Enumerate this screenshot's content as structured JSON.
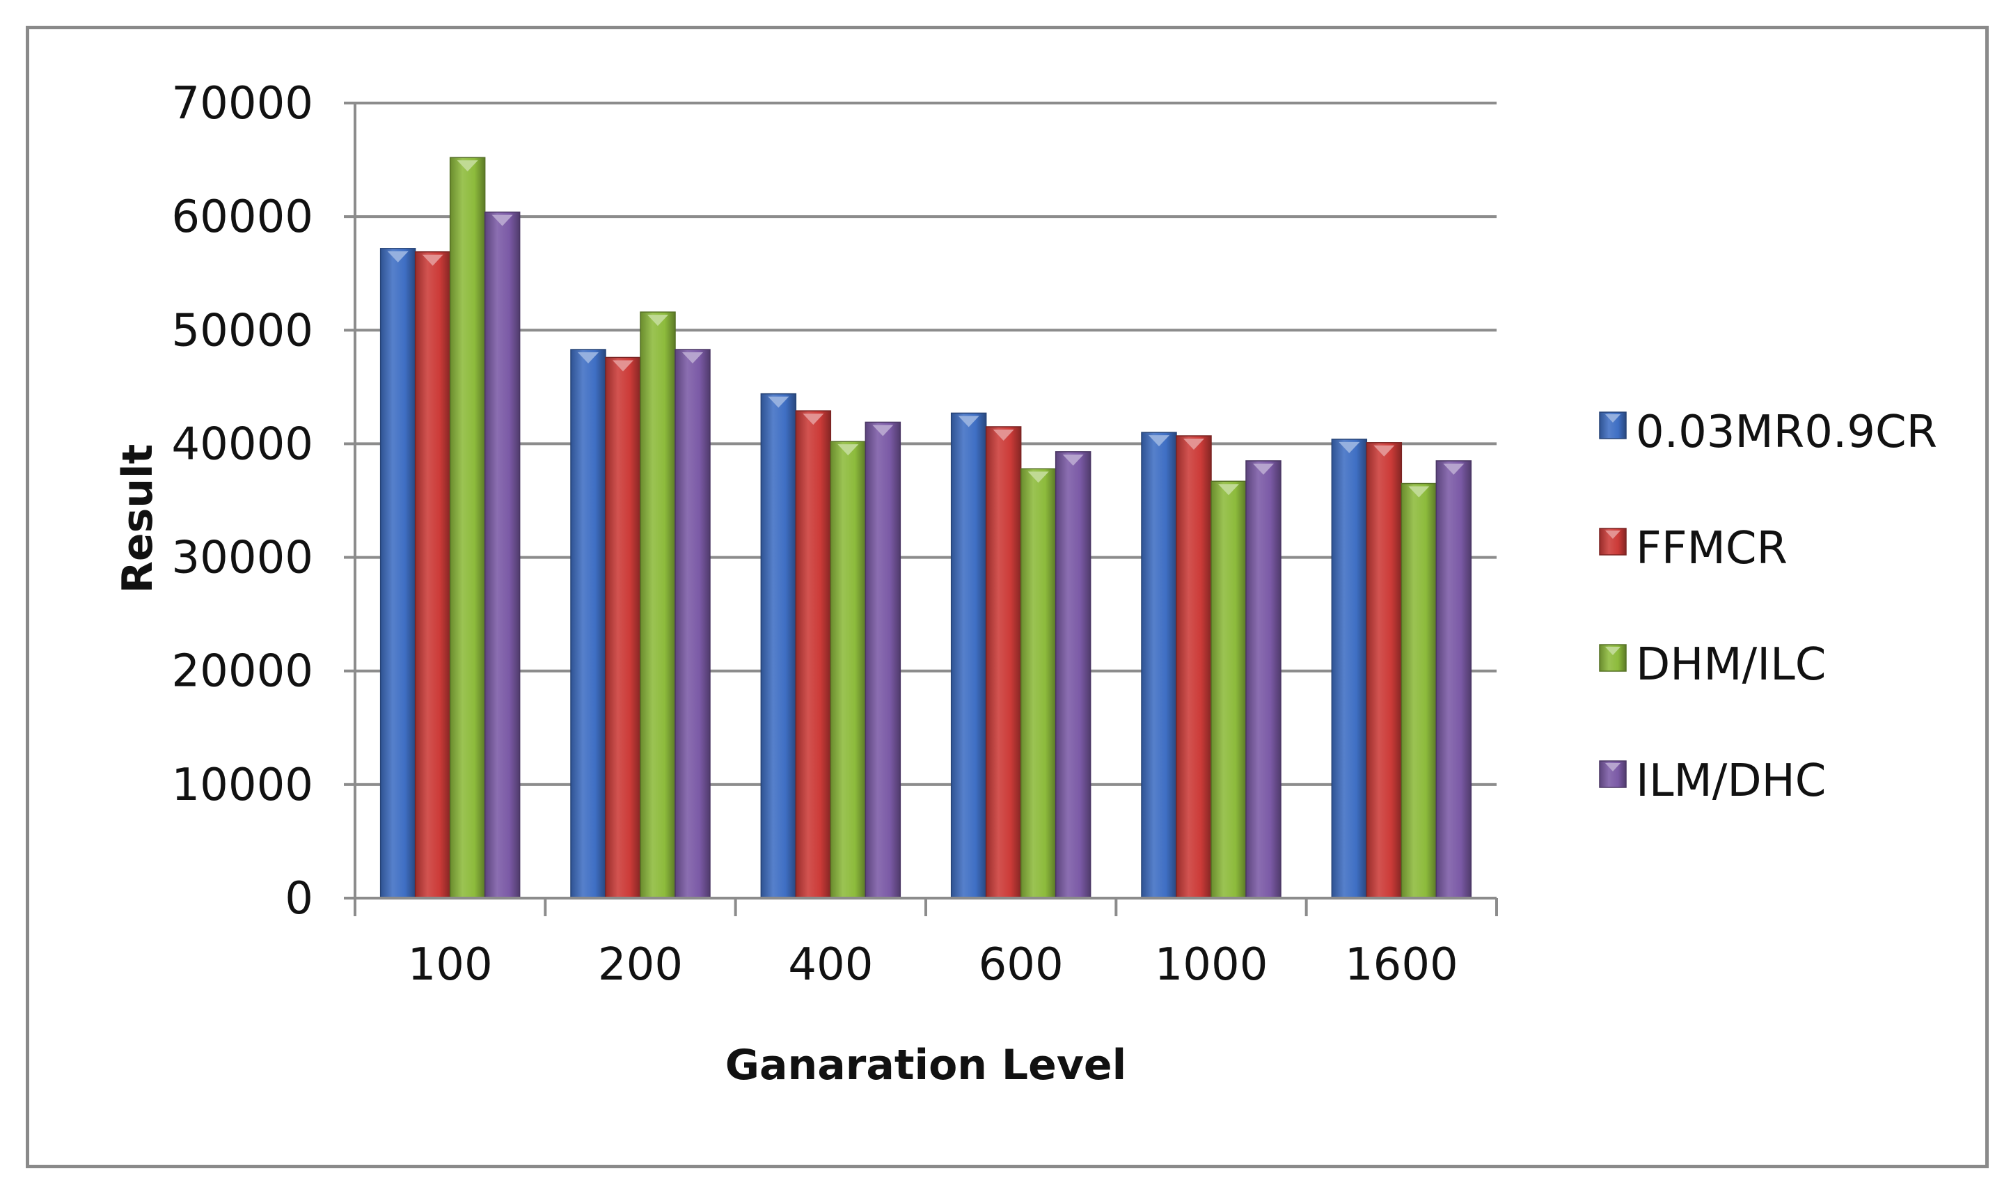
{
  "chart_data": {
    "type": "bar",
    "title": "",
    "xlabel": "Ganaration Level",
    "ylabel": "Result",
    "ylim": [
      0,
      70000
    ],
    "yticks": [
      0,
      10000,
      20000,
      30000,
      40000,
      50000,
      60000,
      70000
    ],
    "ytick_labels": [
      "0",
      "10000",
      "20000",
      "30000",
      "40000",
      "50000",
      "60000",
      "70000"
    ],
    "grid": true,
    "legend_position": "right",
    "categories": [
      "100",
      "200",
      "400",
      "600",
      "1000",
      "1600"
    ],
    "series": [
      {
        "name": "0.03MR0.9CR",
        "color": "#3f6fc4",
        "values": [
          57200,
          48300,
          44400,
          42700,
          41000,
          40400
        ]
      },
      {
        "name": "FFMCR",
        "color": "#cc3b38",
        "values": [
          56900,
          47600,
          42900,
          41500,
          40700,
          40100
        ]
      },
      {
        "name": "DHM/ILC",
        "color": "#8dbb3c",
        "values": [
          65200,
          51600,
          40200,
          37800,
          36700,
          36500
        ]
      },
      {
        "name": "ILM/DHC",
        "color": "#7b5aa6",
        "values": [
          60400,
          48300,
          41900,
          39300,
          38500,
          38500
        ]
      }
    ]
  }
}
